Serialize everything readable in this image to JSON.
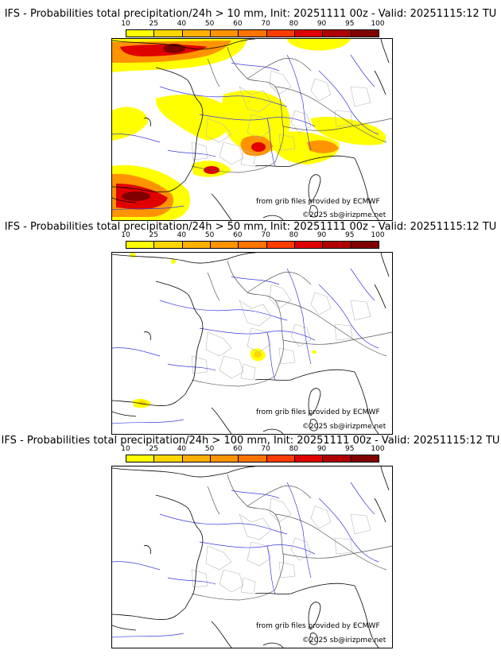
{
  "colorbar": {
    "ticks": [
      "10",
      "25",
      "40",
      "50",
      "60",
      "70",
      "80",
      "90",
      "95",
      "100"
    ],
    "colors": [
      "#ffff00",
      "#ffd700",
      "#ffb000",
      "#ff9400",
      "#ff7400",
      "#ff3c00",
      "#e00000",
      "#b00000",
      "#800000"
    ]
  },
  "panels": [
    {
      "title": "IFS - Probabilities total precipitation/24h > 10 mm, Init: 20251111 00z - Valid: 20251115:12 TU",
      "threshold_mm": 10
    },
    {
      "title": "IFS - Probabilities total precipitation/24h > 50 mm, Init: 20251111 00z - Valid: 20251115:12 TU",
      "threshold_mm": 50
    },
    {
      "title": "IFS - Probabilities total precipitation/24h > 100 mm, Init: 20251111 00z - Valid: 20251115:12 TU",
      "threshold_mm": 100
    }
  ],
  "credits": {
    "source": "from grib files provided by ECMWF",
    "copyright": "©2025 sb@irizpme.net"
  }
}
